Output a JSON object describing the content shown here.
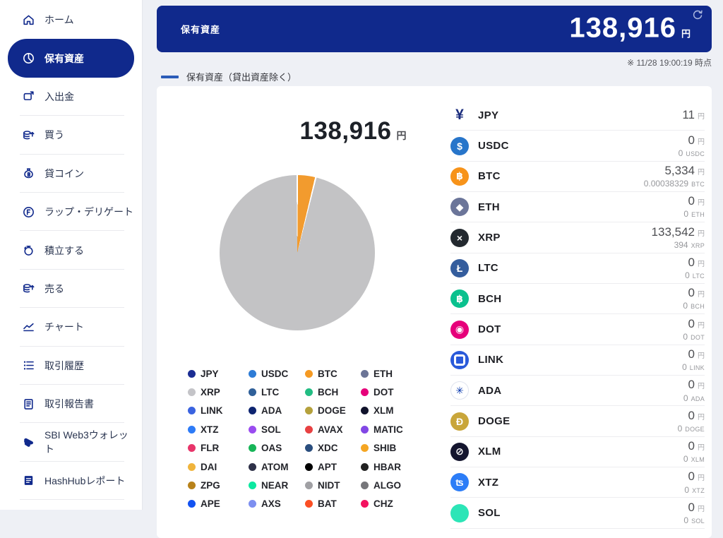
{
  "header": {
    "title": "保有資産",
    "total": "138,916",
    "unit": "円",
    "timestamp": "※ 11/28 19:00:19 時点"
  },
  "series_legend": {
    "label": "保有資産（貸出資産除く）",
    "color": "#2b5cb8"
  },
  "summary": {
    "total": "138,916",
    "unit": "円"
  },
  "sidebar": {
    "items": [
      {
        "label": "ホーム",
        "icon": "home-icon",
        "active": false,
        "divider_after": false
      },
      {
        "label": "保有資産",
        "icon": "pie-chart-icon",
        "active": true,
        "divider_after": false
      },
      {
        "label": "入出金",
        "icon": "transfer-icon",
        "active": false,
        "divider_after": true
      },
      {
        "label": "買う",
        "icon": "buy-coins-icon",
        "active": false,
        "divider_after": true
      },
      {
        "label": "貸コイン",
        "icon": "lend-coin-icon",
        "active": false,
        "divider_after": true
      },
      {
        "label": "ラップ・デリゲート",
        "icon": "wrap-delegate-icon",
        "active": false,
        "divider_after": true
      },
      {
        "label": "積立する",
        "icon": "piggy-bank-icon",
        "active": false,
        "divider_after": true
      },
      {
        "label": "売る",
        "icon": "sell-coins-icon",
        "active": false,
        "divider_after": true
      },
      {
        "label": "チャート",
        "icon": "chart-icon",
        "active": false,
        "divider_after": true
      },
      {
        "label": "取引履歴",
        "icon": "history-icon",
        "active": false,
        "divider_after": true
      },
      {
        "label": "取引報告書",
        "icon": "report-icon",
        "active": false,
        "divider_after": true
      },
      {
        "label": "SBI Web3ウォレット",
        "icon": "wallet-icon",
        "active": false,
        "divider_after": true
      },
      {
        "label": "HashHubレポート",
        "icon": "hashhub-report-icon",
        "active": false,
        "divider_after": true
      }
    ]
  },
  "chart_data": {
    "type": "pie",
    "title": "保有資産（貸出資産除く）",
    "total_label": "138,916 円",
    "slices": [
      {
        "label": "JPY",
        "value": 11,
        "color": "#1b2d93"
      },
      {
        "label": "BTC",
        "value": 5334,
        "color": "#f29b2e"
      },
      {
        "label": "XRP",
        "value": 133542,
        "color": "#c3c3c5"
      }
    ],
    "legend": [
      {
        "symbol": "JPY",
        "color": "#1b2d93"
      },
      {
        "symbol": "USDC",
        "color": "#2e7cd6"
      },
      {
        "symbol": "BTC",
        "color": "#f59a23"
      },
      {
        "symbol": "ETH",
        "color": "#6b7496"
      },
      {
        "symbol": "XRP",
        "color": "#c4c4c8"
      },
      {
        "symbol": "LTC",
        "color": "#2f6099"
      },
      {
        "symbol": "BCH",
        "color": "#22bd83"
      },
      {
        "symbol": "DOT",
        "color": "#e6007a"
      },
      {
        "symbol": "LINK",
        "color": "#3a63e0"
      },
      {
        "symbol": "ADA",
        "color": "#0d2470"
      },
      {
        "symbol": "DOGE",
        "color": "#b5a13c"
      },
      {
        "symbol": "XLM",
        "color": "#10122b"
      },
      {
        "symbol": "XTZ",
        "color": "#2d7bf7"
      },
      {
        "symbol": "SOL",
        "color": "#9a4cf0"
      },
      {
        "symbol": "AVAX",
        "color": "#e84142"
      },
      {
        "symbol": "MATIC",
        "color": "#8247e5"
      },
      {
        "symbol": "FLR",
        "color": "#e8356a"
      },
      {
        "symbol": "OAS",
        "color": "#17b558"
      },
      {
        "symbol": "XDC",
        "color": "#2a4e7e"
      },
      {
        "symbol": "SHIB",
        "color": "#f5a623"
      },
      {
        "symbol": "DAI",
        "color": "#f0b43c"
      },
      {
        "symbol": "ATOM",
        "color": "#2e3148"
      },
      {
        "symbol": "APT",
        "color": "#000000"
      },
      {
        "symbol": "HBAR",
        "color": "#222222"
      },
      {
        "symbol": "ZPG",
        "color": "#b8821a"
      },
      {
        "symbol": "NEAR",
        "color": "#0ce8a0"
      },
      {
        "symbol": "NIDT",
        "color": "#a0a0a4"
      },
      {
        "symbol": "ALGO",
        "color": "#76767a"
      },
      {
        "symbol": "APE",
        "color": "#1352f1"
      },
      {
        "symbol": "AXS",
        "color": "#7d8ff0"
      },
      {
        "symbol": "BAT",
        "color": "#fb4f24"
      },
      {
        "symbol": "CHZ",
        "color": "#f31260"
      }
    ]
  },
  "assets": {
    "jpy_unit": "円",
    "rows": [
      {
        "symbol": "JPY",
        "jpy": "11",
        "amount": null,
        "icon": {
          "plain": true,
          "glyph": "¥",
          "bg": "",
          "fg": "#1b2d7d"
        }
      },
      {
        "symbol": "USDC",
        "jpy": "0",
        "amount": "0",
        "icon": {
          "glyph": "$",
          "bg": "#2775ca",
          "fg": "#ffffff"
        }
      },
      {
        "symbol": "BTC",
        "jpy": "5,334",
        "amount": "0.00038329",
        "icon": {
          "glyph": "฿",
          "bg": "#f7931a",
          "fg": "#ffffff"
        }
      },
      {
        "symbol": "ETH",
        "jpy": "0",
        "amount": "0",
        "icon": {
          "glyph": "◆",
          "bg": "#6b7599",
          "fg": "#ffffff"
        }
      },
      {
        "symbol": "XRP",
        "jpy": "133,542",
        "amount": "394",
        "icon": {
          "glyph": "×",
          "bg": "#23292f",
          "fg": "#ffffff"
        }
      },
      {
        "symbol": "LTC",
        "jpy": "0",
        "amount": "0",
        "icon": {
          "glyph": "Ł",
          "bg": "#345d9d",
          "fg": "#ffffff"
        }
      },
      {
        "symbol": "BCH",
        "jpy": "0",
        "amount": "0",
        "icon": {
          "glyph": "฿",
          "bg": "#0ac18e",
          "fg": "#ffffff"
        }
      },
      {
        "symbol": "DOT",
        "jpy": "0",
        "amount": "0",
        "icon": {
          "glyph": "◉",
          "bg": "#e6007a",
          "fg": "#ffffff"
        }
      },
      {
        "symbol": "LINK",
        "jpy": "0",
        "amount": "0",
        "icon": {
          "ring": true,
          "glyph": "",
          "bg": "#2a5ada",
          "fg": "#ffffff"
        }
      },
      {
        "symbol": "ADA",
        "jpy": "0",
        "amount": "0",
        "icon": {
          "glyph": "✳",
          "bg": "#ffffff",
          "fg": "#0033ad",
          "border": "#dfe3ee"
        }
      },
      {
        "symbol": "DOGE",
        "jpy": "0",
        "amount": "0",
        "icon": {
          "glyph": "Ð",
          "bg": "#c9a63a",
          "fg": "#ffffff"
        }
      },
      {
        "symbol": "XLM",
        "jpy": "0",
        "amount": "0",
        "icon": {
          "glyph": "⊘",
          "bg": "#14152e",
          "fg": "#ffffff"
        }
      },
      {
        "symbol": "XTZ",
        "jpy": "0",
        "amount": "0",
        "icon": {
          "glyph": "ʦ",
          "bg": "#2c7df7",
          "fg": "#ffffff"
        }
      },
      {
        "symbol": "SOL",
        "jpy": "0",
        "amount": "0",
        "icon": {
          "glyph": "",
          "bg": "#2ce5b7",
          "fg": "#ffffff"
        }
      }
    ]
  }
}
